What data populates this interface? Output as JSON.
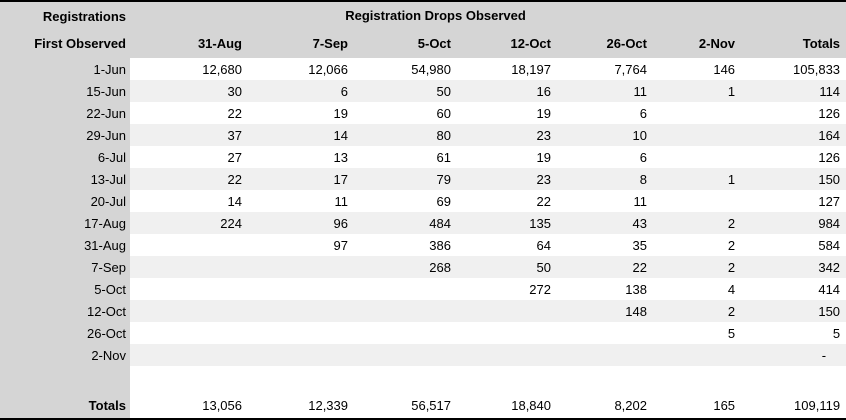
{
  "chart_data": {
    "type": "table",
    "title": "Registration Drops Observed",
    "corner_header_line1": "Registrations",
    "corner_header_line2": "First Observed",
    "columns": [
      "31-Aug",
      "7-Sep",
      "5-Oct",
      "12-Oct",
      "26-Oct",
      "2-Nov",
      "Totals"
    ],
    "rows": [
      {
        "label": "1-Jun",
        "values": [
          "12,680",
          "12,066",
          "54,980",
          "18,197",
          "7,764",
          "146",
          "105,833"
        ]
      },
      {
        "label": "15-Jun",
        "values": [
          "30",
          "6",
          "50",
          "16",
          "11",
          "1",
          "114"
        ]
      },
      {
        "label": "22-Jun",
        "values": [
          "22",
          "19",
          "60",
          "19",
          "6",
          "",
          "126"
        ]
      },
      {
        "label": "29-Jun",
        "values": [
          "37",
          "14",
          "80",
          "23",
          "10",
          "",
          "164"
        ]
      },
      {
        "label": "6-Jul",
        "values": [
          "27",
          "13",
          "61",
          "19",
          "6",
          "",
          "126"
        ]
      },
      {
        "label": "13-Jul",
        "values": [
          "22",
          "17",
          "79",
          "23",
          "8",
          "1",
          "150"
        ]
      },
      {
        "label": "20-Jul",
        "values": [
          "14",
          "11",
          "69",
          "22",
          "11",
          "",
          "127"
        ]
      },
      {
        "label": "17-Aug",
        "values": [
          "224",
          "96",
          "484",
          "135",
          "43",
          "2",
          "984"
        ]
      },
      {
        "label": "31-Aug",
        "values": [
          "",
          "97",
          "386",
          "64",
          "35",
          "2",
          "584"
        ]
      },
      {
        "label": "7-Sep",
        "values": [
          "",
          "",
          "268",
          "50",
          "22",
          "2",
          "342"
        ]
      },
      {
        "label": "5-Oct",
        "values": [
          "",
          "",
          "",
          "272",
          "138",
          "4",
          "414"
        ]
      },
      {
        "label": "12-Oct",
        "values": [
          "",
          "",
          "",
          "",
          "148",
          "2",
          "150"
        ]
      },
      {
        "label": "26-Oct",
        "values": [
          "",
          "",
          "",
          "",
          "",
          "5",
          "5"
        ]
      },
      {
        "label": "2-Nov",
        "values": [
          "",
          "",
          "",
          "",
          "",
          "",
          "-"
        ]
      }
    ],
    "totals": {
      "label": "Totals",
      "values": [
        "13,056",
        "12,339",
        "56,517",
        "18,840",
        "8,202",
        "165",
        "109,119"
      ]
    },
    "layout_hints": {
      "stripe_alternating_rows": true,
      "title_spans_date_columns": true
    }
  },
  "colors": {
    "header_bg": "#d5d5d5",
    "stripe_bg": "#f0f0f0",
    "text": "#000000",
    "rule": "#000000"
  }
}
